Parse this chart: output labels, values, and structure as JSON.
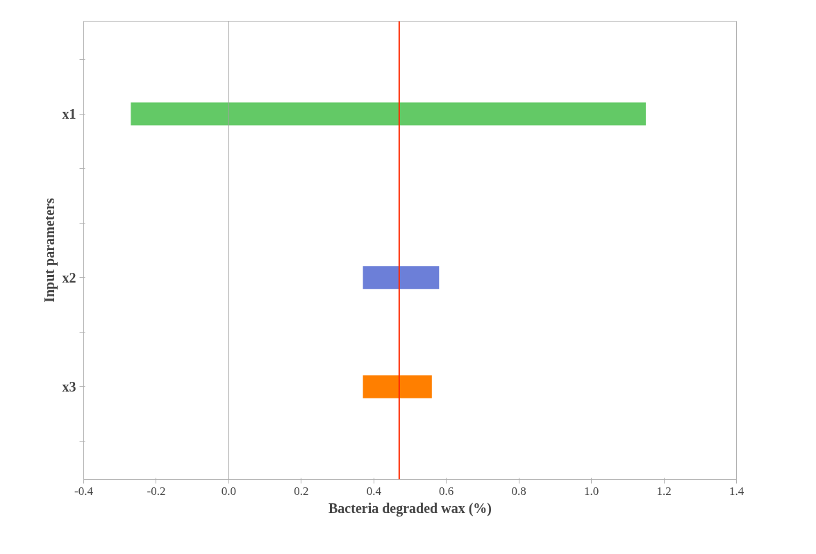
{
  "chart_data": {
    "type": "bar",
    "orientation": "horizontal",
    "xlabel": "Bacteria degraded wax (%)",
    "ylabel": "Input parameters",
    "categories": [
      null,
      "x1",
      null,
      null,
      "x2",
      null,
      "x3",
      null
    ],
    "base": [
      null,
      -0.27,
      null,
      null,
      0.37,
      null,
      0.37,
      null
    ],
    "values": [
      null,
      1.42,
      null,
      null,
      0.21,
      null,
      0.19,
      null
    ],
    "colors": [
      "#6c7fd8",
      "#63c966",
      "#ffa500",
      "#999999",
      "#6c7fd8",
      "#999999",
      "#ff7f00",
      "#999999"
    ],
    "xlim": [
      -0.4,
      1.4
    ],
    "xticks": [
      -0.4,
      -0.2,
      {
        "value": 0,
        "label": "0.0"
      },
      0.2,
      0.4,
      0.6,
      0.8,
      {
        "value": 1,
        "label": "1.0"
      },
      1.2,
      1.4
    ],
    "ref_lines": [
      {
        "axis": "x",
        "value": 0,
        "label": null,
        "color": "#a0a0a0"
      },
      {
        "axis": "x",
        "value": 0.47,
        "label": null,
        "color": "#ff2a00"
      }
    ],
    "grid": false
  }
}
